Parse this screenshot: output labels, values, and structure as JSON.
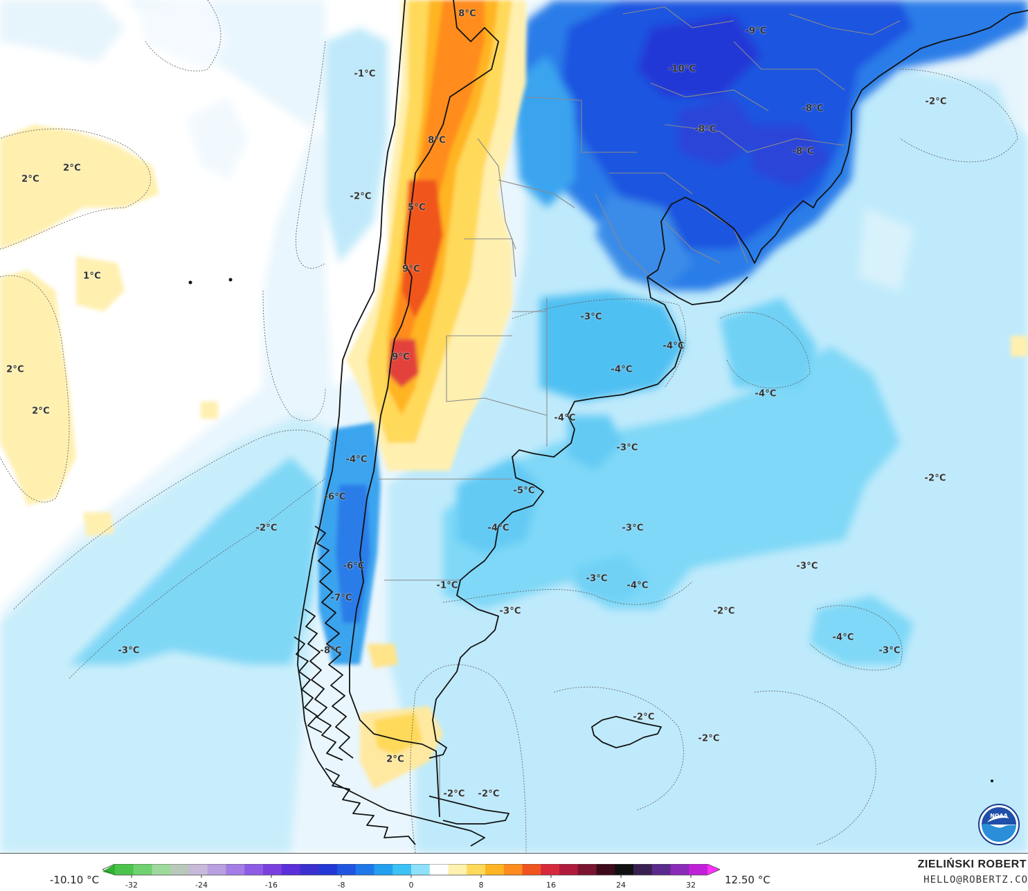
{
  "map": {
    "temperature_labels": [
      {
        "text": "8°C"
      },
      {
        "text": "-9°C"
      },
      {
        "text": "-10°C"
      },
      {
        "text": "-1°C"
      },
      {
        "text": "-8°C"
      },
      {
        "text": "-2°C"
      },
      {
        "text": "-8°C"
      },
      {
        "text": "8°C"
      },
      {
        "text": "-8°C"
      },
      {
        "text": "2°C"
      },
      {
        "text": "2°C"
      },
      {
        "text": "-2°C"
      },
      {
        "text": "5°C"
      },
      {
        "text": "1°C"
      },
      {
        "text": "9°C"
      },
      {
        "text": "-3°C"
      },
      {
        "text": "-4°C"
      },
      {
        "text": "2°C"
      },
      {
        "text": "-4°C"
      },
      {
        "text": "9°C"
      },
      {
        "text": "-4°C"
      },
      {
        "text": "2°C"
      },
      {
        "text": "-4°C"
      },
      {
        "text": "-3°C"
      },
      {
        "text": "-4°C"
      },
      {
        "text": "-2°C"
      },
      {
        "text": "-6°C"
      },
      {
        "text": "-5°C"
      },
      {
        "text": "-2°C"
      },
      {
        "text": "-4°C"
      },
      {
        "text": "-3°C"
      },
      {
        "text": "-6°C"
      },
      {
        "text": "-3°C"
      },
      {
        "text": "-1°C"
      },
      {
        "text": "-4°C"
      },
      {
        "text": "-3°C"
      },
      {
        "text": "-7°C"
      },
      {
        "text": "-3°C"
      },
      {
        "text": "-2°C"
      },
      {
        "text": "-3°C"
      },
      {
        "text": "-8°C"
      },
      {
        "text": "-4°C"
      },
      {
        "text": "-3°C"
      },
      {
        "text": "-2°C"
      },
      {
        "text": "-2°C"
      },
      {
        "text": "2°C"
      },
      {
        "text": "-2°C"
      },
      {
        "text": "-2°C"
      }
    ]
  },
  "legend": {
    "min_label": "-10.10 °C",
    "max_label": "12.50 °C",
    "ticks": [
      "-32",
      "-24",
      "-16",
      "-8",
      "0",
      "8",
      "16",
      "24",
      "32"
    ],
    "colors": [
      "#2fb52f",
      "#4cc34c",
      "#6fd16f",
      "#9ed99e",
      "#b9c9b9",
      "#c6b9d9",
      "#b9a0e0",
      "#a47de6",
      "#8e5ce4",
      "#7b3fe0",
      "#5b2fd9",
      "#3b2fd0",
      "#2438d6",
      "#1f55e0",
      "#1f78ea",
      "#23a0f0",
      "#3cc2f5",
      "#8fe0fa",
      "#ffffff",
      "#fff2b0",
      "#ffd95a",
      "#ffb423",
      "#ff8c1e",
      "#f0541e",
      "#d8283c",
      "#b01a3c",
      "#7a1430",
      "#3c0a1a",
      "#101010",
      "#3a2050",
      "#5a2a8c",
      "#8a2ab8",
      "#c020d8",
      "#ff30ff"
    ]
  },
  "credit": {
    "author": "ZIELIŃSKI ROBERT",
    "email": "HELLO@ROBERTZ.CO",
    "logo_icon": "noaa-logo-icon",
    "logo_text": "NOAA"
  }
}
